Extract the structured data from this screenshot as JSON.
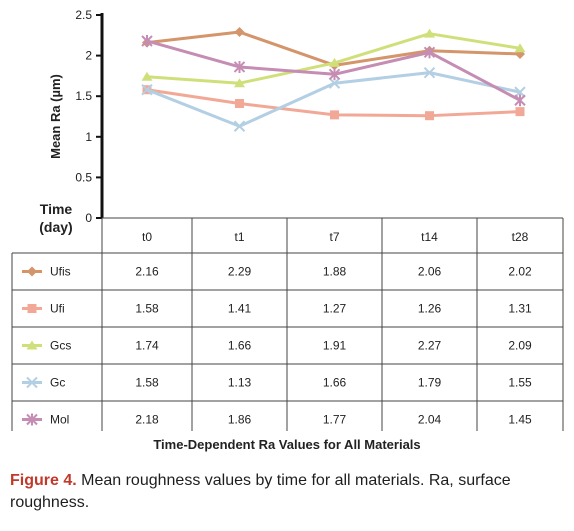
{
  "chart_data": {
    "type": "line",
    "title": "Time-Dependent Ra Values for All Materials",
    "ylabel": "Mean Ra (µm)",
    "xlabel": "Time (day)",
    "xlabel_lines": [
      "Time",
      "(day)"
    ],
    "ylim": [
      0,
      2.5
    ],
    "yticks": [
      "0",
      "0.5",
      "1",
      "1.5",
      "2",
      "2.5"
    ],
    "ytick_values": [
      0,
      0.5,
      1,
      1.5,
      2,
      2.5
    ],
    "categories": [
      "t0",
      "t1",
      "t7",
      "t14",
      "t28"
    ],
    "grid": false,
    "legend": "data table below chart",
    "series": [
      {
        "name": "Ufis",
        "values": [
          2.16,
          2.29,
          1.88,
          2.06,
          2.02
        ],
        "labels": [
          "2.16",
          "2.29",
          "1.88",
          "2.06",
          "2.02"
        ],
        "color": "#d4956a",
        "marker": "diamond"
      },
      {
        "name": "Ufi",
        "values": [
          1.58,
          1.41,
          1.27,
          1.26,
          1.31
        ],
        "labels": [
          "1.58",
          "1.41",
          "1.27",
          "1.26",
          "1.31"
        ],
        "color": "#f2a896",
        "marker": "square"
      },
      {
        "name": "Gcs",
        "values": [
          1.74,
          1.66,
          1.91,
          2.27,
          2.09
        ],
        "labels": [
          "1.74",
          "1.66",
          "1.91",
          "2.27",
          "2.09"
        ],
        "color": "#cfe07a",
        "marker": "triangle"
      },
      {
        "name": "Gc",
        "values": [
          1.58,
          1.13,
          1.66,
          1.79,
          1.55
        ],
        "labels": [
          "1.58",
          "1.13",
          "1.66",
          "1.79",
          "1.55"
        ],
        "color": "#b3cfe3",
        "marker": "x"
      },
      {
        "name": "Mol",
        "values": [
          2.18,
          1.86,
          1.77,
          2.04,
          1.45
        ],
        "labels": [
          "2.18",
          "1.86",
          "1.77",
          "2.04",
          "1.45"
        ],
        "color": "#c58db3",
        "marker": "star"
      }
    ]
  },
  "caption": {
    "label": "Figure 4.",
    "text": " Mean roughness values by time for all materials. Ra, surface roughness."
  }
}
